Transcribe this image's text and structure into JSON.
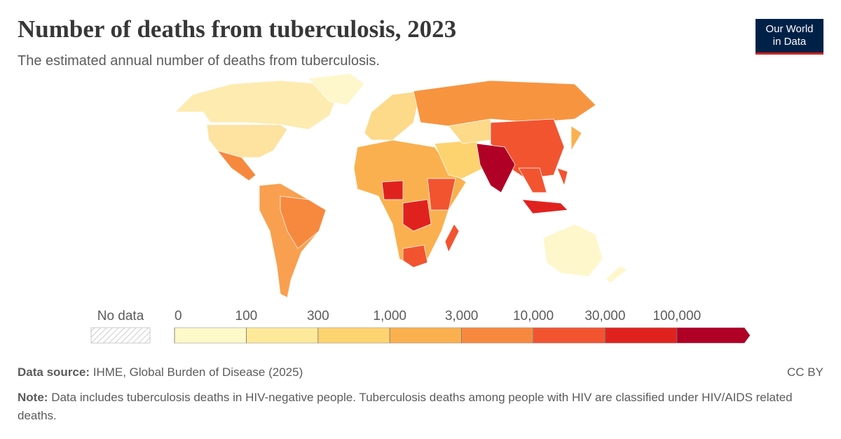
{
  "header": {
    "title": "Number of deaths from tuberculosis, 2023",
    "subtitle": "The estimated annual number of deaths from tuberculosis.",
    "logo": [
      "Our World",
      "in Data"
    ]
  },
  "chart_data": {
    "type": "choropleth",
    "legend": {
      "no_data_label": "No data",
      "ticks": [
        0,
        100,
        300,
        {
          "value": 1000,
          "label": "1,000"
        },
        {
          "value": 3000,
          "label": "3,000"
        },
        {
          "value": 10000,
          "label": "10,000"
        },
        {
          "value": 30000,
          "label": "30,000"
        },
        {
          "value": 100000,
          "label": "100,000"
        }
      ],
      "colors": [
        "#fef9c8",
        "#fee99a",
        "#fdd370",
        "#fbb04f",
        "#f7893f",
        "#f25430",
        "#e0221f",
        "#b00026"
      ]
    }
  },
  "footer": {
    "source_label": "Data source:",
    "source": "IHME, Global Burden of Disease (2025)",
    "license": "CC BY",
    "note_label": "Note:",
    "note": "Data includes tuberculosis deaths in HIV-negative people. Tuberculosis deaths among people with HIV are classified under HIV/AIDS related deaths."
  }
}
